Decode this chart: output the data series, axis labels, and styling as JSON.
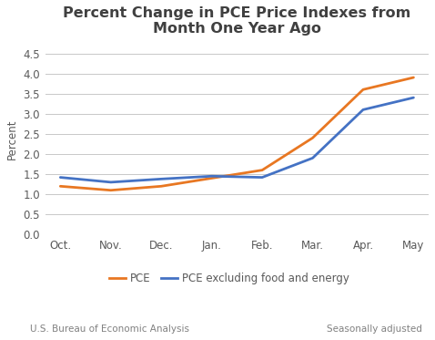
{
  "title": "Percent Change in PCE Price Indexes from\nMonth One Year Ago",
  "ylabel": "Percent",
  "x_labels": [
    "Oct.",
    "Nov.",
    "Dec.",
    "Jan.",
    "Feb.",
    "Mar.",
    "Apr.",
    "May"
  ],
  "pce_values": [
    1.2,
    1.1,
    1.2,
    1.4,
    1.6,
    2.4,
    3.6,
    3.9
  ],
  "pce_ex_values": [
    1.42,
    1.3,
    1.38,
    1.45,
    1.42,
    1.9,
    3.1,
    3.4
  ],
  "pce_color": "#E87722",
  "pce_ex_color": "#4472C4",
  "ylim": [
    0.0,
    4.75
  ],
  "yticks": [
    0.0,
    0.5,
    1.0,
    1.5,
    2.0,
    2.5,
    3.0,
    3.5,
    4.0,
    4.5
  ],
  "line_width": 2.0,
  "title_fontsize": 11.5,
  "ylabel_fontsize": 8.5,
  "tick_label_fontsize": 8.5,
  "legend_fontsize": 8.5,
  "footer_left": "U.S. Bureau of Economic Analysis",
  "footer_right": "Seasonally adjusted",
  "footer_fontsize": 7.5,
  "background_color": "#FFFFFF",
  "grid_color": "#C8C8C8",
  "title_color": "#404040",
  "axis_text_color": "#595959",
  "footer_text_color": "#808080"
}
